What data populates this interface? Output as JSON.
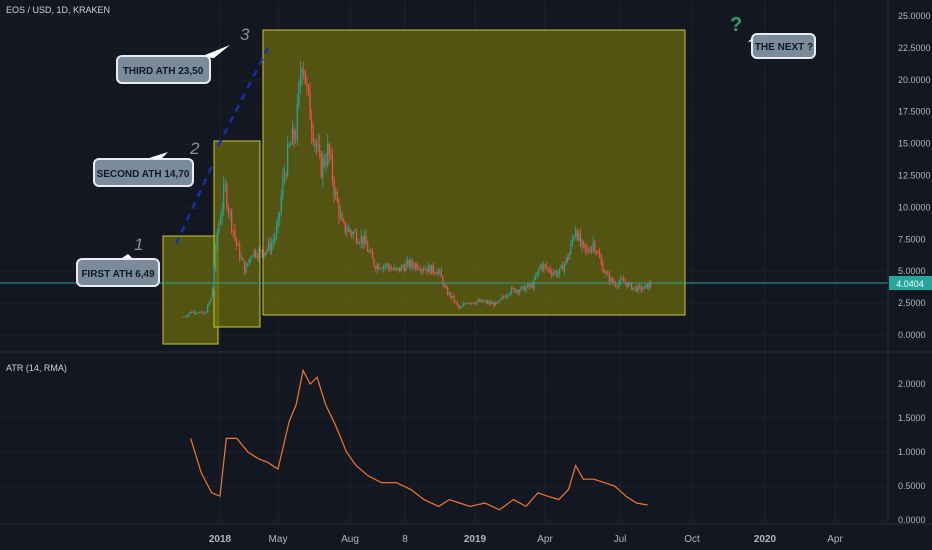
{
  "symbol_title": "EOS / USD, 1D, KRAKEN",
  "indicator_title": "ATR (14, RMA)",
  "last_price": "4.0404",
  "colors": {
    "background": "#131722",
    "up": "#26a69a",
    "down": "#ef5350",
    "atr": "#f0782d",
    "box_fill": "#6b6a0d",
    "box_stroke": "#c8c830",
    "callout_fill": "#7a8b9a",
    "trend_dashes": "#1a2ea8",
    "price_line": "#26a69a",
    "question_mark": "#2e9e6a"
  },
  "annotations": {
    "first": "FIRST ATH 6,49",
    "second": "SECOND ATH  14,70",
    "third": "THIRD ATH 23,50",
    "next": "THE NEXT ?",
    "num1": "1",
    "num2": "2",
    "num3": "3",
    "question": "?"
  },
  "chart_data": [
    {
      "type": "candlestick",
      "series": [
        {
          "name": "EOS / USD, 1D, KRAKEN"
        }
      ],
      "x_ticks": [
        "2018",
        "May",
        "Aug",
        "8",
        "2019",
        "Apr",
        "Jul",
        "Oct",
        "2020",
        "Apr"
      ],
      "y_ticks": [
        "25.0000",
        "22.5000",
        "20.0000",
        "17.5000",
        "15.0000",
        "12.5000",
        "10.0000",
        "7.5000",
        "5.0000",
        "2.5000",
        "0.0000"
      ],
      "ylim": [
        0,
        25
      ],
      "approx_close_path": [
        [
          "2017-11-10",
          1.4
        ],
        [
          "2017-11-20",
          1.8
        ],
        [
          "2017-12-01",
          1.8
        ],
        [
          "2017-12-10",
          1.6
        ],
        [
          "2017-12-20",
          3.0
        ],
        [
          "2017-12-28",
          8.0
        ],
        [
          "2018-01-08",
          11.5
        ],
        [
          "2018-01-15",
          9.5
        ],
        [
          "2018-01-25",
          7.0
        ],
        [
          "2018-02-06",
          5.0
        ],
        [
          "2018-02-15",
          6.5
        ],
        [
          "2018-03-01",
          6.5
        ],
        [
          "2018-03-15",
          7.0
        ],
        [
          "2018-03-25",
          8.5
        ],
        [
          "2018-04-01",
          12.0
        ],
        [
          "2018-04-10",
          14.5
        ],
        [
          "2018-04-20",
          16.0
        ],
        [
          "2018-04-29",
          22.5
        ],
        [
          "2018-05-05",
          19.0
        ],
        [
          "2018-05-15",
          16.0
        ],
        [
          "2018-05-25",
          13.0
        ],
        [
          "2018-06-05",
          14.5
        ],
        [
          "2018-06-15",
          11.0
        ],
        [
          "2018-06-25",
          8.5
        ],
        [
          "2018-07-10",
          8.0
        ],
        [
          "2018-07-25",
          7.5
        ],
        [
          "2018-08-10",
          5.5
        ],
        [
          "2018-08-25",
          5.5
        ],
        [
          "2018-09-10",
          5.0
        ],
        [
          "2018-09-25",
          5.5
        ],
        [
          "2018-10-10",
          5.5
        ],
        [
          "2018-10-25",
          5.2
        ],
        [
          "2018-11-10",
          5.0
        ],
        [
          "2018-11-20",
          3.5
        ],
        [
          "2018-12-01",
          2.8
        ],
        [
          "2018-12-10",
          2.0
        ],
        [
          "2018-12-20",
          2.6
        ],
        [
          "2019-01-10",
          2.6
        ],
        [
          "2019-02-01",
          2.4
        ],
        [
          "2019-02-20",
          3.5
        ],
        [
          "2019-03-10",
          3.6
        ],
        [
          "2019-03-25",
          3.9
        ],
        [
          "2019-04-05",
          5.5
        ],
        [
          "2019-04-20",
          5.0
        ],
        [
          "2019-05-01",
          4.8
        ],
        [
          "2019-05-15",
          6.2
        ],
        [
          "2019-05-25",
          8.5
        ],
        [
          "2019-06-01",
          7.0
        ],
        [
          "2019-06-10",
          6.5
        ],
        [
          "2019-06-20",
          7.3
        ],
        [
          "2019-07-01",
          5.5
        ],
        [
          "2019-07-10",
          4.5
        ],
        [
          "2019-07-20",
          4.0
        ],
        [
          "2019-08-01",
          4.2
        ],
        [
          "2019-08-15",
          3.7
        ],
        [
          "2019-08-25",
          3.6
        ],
        [
          "2019-09-01",
          3.7
        ],
        [
          "2019-09-10",
          4.0
        ]
      ]
    },
    {
      "type": "line",
      "series": [
        {
          "name": "ATR (14, RMA)"
        }
      ],
      "y_ticks": [
        "2.0000",
        "1.5000",
        "1.0000",
        "0.5000",
        "0.0000"
      ],
      "ylim": [
        0,
        2.3
      ],
      "x": [
        "2017-11-20",
        "2017-12-05",
        "2017-12-20",
        "2018-01-01",
        "2018-01-10",
        "2018-01-25",
        "2018-02-10",
        "2018-02-25",
        "2018-03-10",
        "2018-03-25",
        "2018-04-10",
        "2018-04-20",
        "2018-04-30",
        "2018-05-10",
        "2018-05-20",
        "2018-06-01",
        "2018-06-15",
        "2018-07-01",
        "2018-07-15",
        "2018-08-01",
        "2018-08-20",
        "2018-09-10",
        "2018-10-01",
        "2018-10-20",
        "2018-11-10",
        "2018-11-25",
        "2018-12-10",
        "2018-12-25",
        "2019-01-15",
        "2019-02-05",
        "2019-02-25",
        "2019-03-15",
        "2019-04-01",
        "2019-04-15",
        "2019-05-01",
        "2019-05-15",
        "2019-05-25",
        "2019-06-05",
        "2019-06-20",
        "2019-07-05",
        "2019-07-20",
        "2019-08-05",
        "2019-08-20",
        "2019-09-05"
      ],
      "values": [
        1.2,
        0.7,
        0.4,
        0.35,
        1.2,
        1.2,
        1.0,
        0.9,
        0.85,
        0.75,
        1.45,
        1.7,
        2.2,
        2.0,
        2.1,
        1.7,
        1.4,
        1.0,
        0.8,
        0.65,
        0.55,
        0.55,
        0.45,
        0.3,
        0.2,
        0.3,
        0.25,
        0.2,
        0.25,
        0.15,
        0.3,
        0.2,
        0.4,
        0.35,
        0.3,
        0.45,
        0.8,
        0.6,
        0.6,
        0.55,
        0.5,
        0.35,
        0.25,
        0.22
      ]
    }
  ]
}
